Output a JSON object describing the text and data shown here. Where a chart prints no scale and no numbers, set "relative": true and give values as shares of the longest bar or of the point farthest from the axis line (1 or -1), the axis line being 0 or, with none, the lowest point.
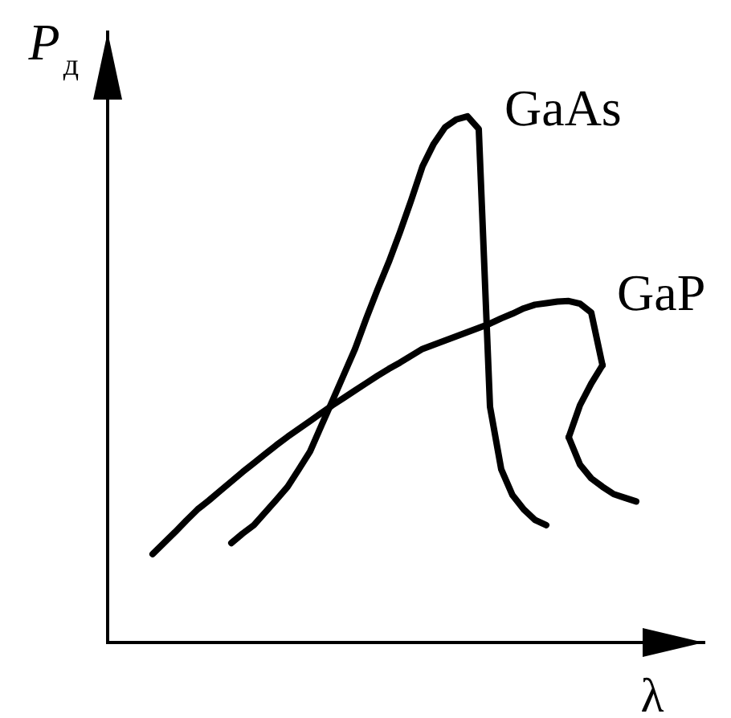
{
  "chart_data": {
    "type": "line",
    "xlabel": "λ",
    "ylabel": "P$_{д}$",
    "relative": true,
    "marker": "none",
    "line_style": "solid",
    "categories": [
      null,
      null,
      null,
      null,
      null,
      null,
      null,
      null,
      null,
      null,
      null,
      null,
      null,
      null,
      null,
      null,
      null,
      null,
      null,
      null,
      null,
      null,
      null,
      null,
      null,
      null,
      null,
      null,
      null,
      null,
      null,
      null,
      null,
      null,
      null,
      null,
      null,
      null,
      null,
      null,
      null,
      null,
      null,
      null,
      null,
      null,
      null,
      null,
      null,
      null,
      null,
      null,
      null,
      null
    ],
    "series": [
      {
        "name": "GaAs",
        "color": "#000000",
        "values": [
          null,
          null,
          null,
          null,
          null,
          null,
          null,
          null,
          null,
          null,
          null,
          0.189,
          0.207,
          0.223,
          0.247,
          0.271,
          0.296,
          0.329,
          0.363,
          0.412,
          0.46,
          0.509,
          0.558,
          0.616,
          0.671,
          0.723,
          0.78,
          0.841,
          0.905,
          0.948,
          0.979,
          0.994,
          1.0,
          0.976,
          0.448,
          0.329,
          0.28,
          0.253,
          0.233,
          0.223,
          null,
          null,
          null,
          null,
          null,
          null,
          null,
          null,
          null,
          null,
          null,
          null,
          null,
          null
        ]
      },
      {
        "name": "GaP",
        "color": "#000000",
        "values": [
          null,
          null,
          null,
          null,
          0.168,
          0.189,
          0.21,
          0.232,
          0.253,
          0.27,
          0.288,
          0.306,
          0.324,
          0.341,
          0.358,
          0.375,
          0.391,
          0.406,
          0.421,
          0.436,
          0.451,
          0.465,
          0.479,
          0.493,
          0.507,
          0.52,
          0.532,
          0.545,
          0.558,
          0.566,
          0.574,
          0.582,
          0.59,
          0.598,
          0.606,
          0.616,
          0.625,
          0.635,
          0.642,
          0.645,
          0.648,
          0.649,
          0.644,
          0.627,
          0.527,
          null,
          null,
          null,
          null,
          null,
          null,
          null,
          null,
          null
        ]
      },
      {
        "color": "#000000",
        "values": [
          null,
          null,
          null,
          null,
          null,
          null,
          null,
          null,
          null,
          null,
          null,
          null,
          null,
          null,
          null,
          null,
          null,
          null,
          null,
          null,
          null,
          null,
          null,
          null,
          null,
          null,
          null,
          null,
          null,
          null,
          null,
          null,
          null,
          null,
          null,
          null,
          null,
          null,
          null,
          null,
          null,
          0.39,
          0.451,
          0.492,
          0.527,
          null,
          null,
          null,
          null,
          null,
          null,
          null,
          null,
          null
        ]
      },
      {
        "color": "#000000",
        "values": [
          null,
          null,
          null,
          null,
          null,
          null,
          null,
          null,
          null,
          null,
          null,
          null,
          null,
          null,
          null,
          null,
          null,
          null,
          null,
          null,
          null,
          null,
          null,
          null,
          null,
          null,
          null,
          null,
          null,
          null,
          null,
          null,
          null,
          null,
          null,
          null,
          null,
          null,
          null,
          null,
          null,
          0.39,
          0.338,
          0.312,
          0.296,
          0.282,
          0.275,
          0.268,
          null,
          null,
          null,
          null,
          null,
          null
        ]
      }
    ]
  }
}
